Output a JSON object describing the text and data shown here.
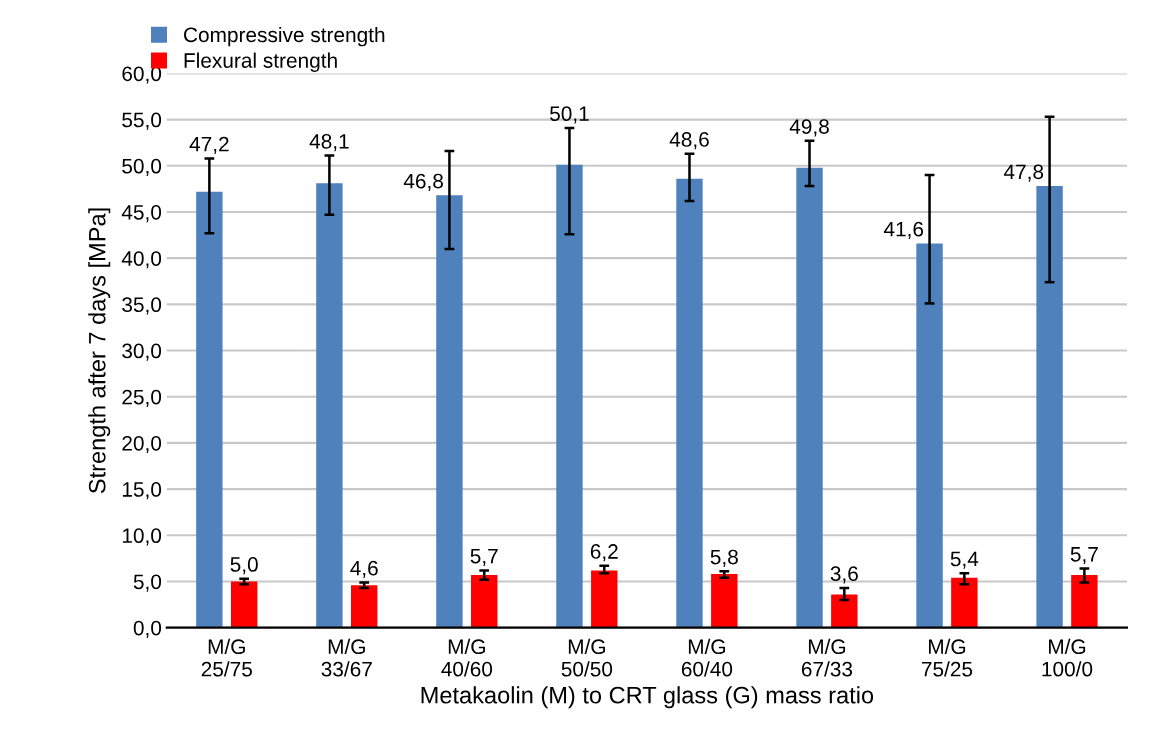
{
  "chart_data": {
    "type": "bar",
    "xlabel": "Metakaolin (M) to CRT glass (G) mass ratio",
    "ylabel": "Strength after 7 days [MPa]",
    "categories": [
      "M/G\n25/75",
      "M/G\n33/67",
      "M/G\n40/60",
      "M/G\n50/50",
      "M/G\n60/40",
      "M/G\n67/33",
      "M/G\n75/25",
      "M/G\n100/0"
    ],
    "series": [
      {
        "name": "Compressive strength",
        "color": "#4f81bd",
        "values": [
          47.2,
          48.1,
          46.8,
          50.1,
          48.6,
          49.8,
          41.6,
          47.8
        ],
        "errors": [
          [
            42.7,
            50.8
          ],
          [
            44.7,
            51.1
          ],
          [
            41.0,
            51.6
          ],
          [
            42.6,
            54.1
          ],
          [
            46.2,
            51.3
          ],
          [
            47.8,
            52.7
          ],
          [
            35.1,
            49.0
          ],
          [
            37.4,
            55.3
          ]
        ],
        "value_labels": [
          "47,2",
          "48,1",
          "46,8",
          "50,1",
          "48,6",
          "49,8",
          "41,6",
          "47,8"
        ]
      },
      {
        "name": "Flexural strength",
        "color": "#ff0000",
        "values": [
          5.0,
          4.6,
          5.7,
          6.2,
          5.8,
          3.6,
          5.4,
          5.7
        ],
        "errors": [
          [
            4.7,
            5.3
          ],
          [
            4.3,
            4.9
          ],
          [
            5.2,
            6.2
          ],
          [
            5.9,
            6.7
          ],
          [
            5.4,
            6.1
          ],
          [
            3.0,
            4.3
          ],
          [
            4.7,
            5.9
          ],
          [
            4.9,
            6.4
          ]
        ],
        "value_labels": [
          "5,0",
          "4,6",
          "5,7",
          "6,2",
          "5,8",
          "3,6",
          "5,4",
          "5,7"
        ]
      }
    ],
    "ylim": [
      0,
      60
    ],
    "yticks": [
      {
        "value": 0,
        "label": "0,0"
      },
      {
        "value": 5,
        "label": "5,0"
      },
      {
        "value": 10,
        "label": "10,0"
      },
      {
        "value": 15,
        "label": "15,0"
      },
      {
        "value": 20,
        "label": "20,0"
      },
      {
        "value": 25,
        "label": "25,0"
      },
      {
        "value": 30,
        "label": "30,0"
      },
      {
        "value": 35,
        "label": "35,0"
      },
      {
        "value": 40,
        "label": "40,0"
      },
      {
        "value": 45,
        "label": "45,0"
      },
      {
        "value": 50,
        "label": "50,0"
      },
      {
        "value": 55,
        "label": "55,0"
      },
      {
        "value": 60,
        "label": "60,0"
      }
    ],
    "grid": "y",
    "legend": "top left"
  }
}
